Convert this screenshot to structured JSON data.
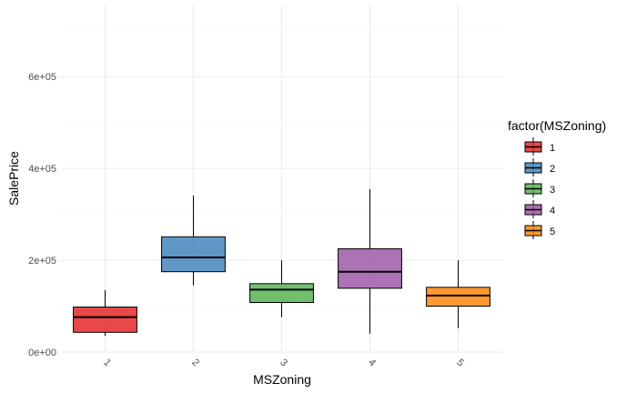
{
  "chart_data": {
    "type": "boxplot",
    "xlabel": "MSZoning",
    "ylabel": "SalePrice",
    "ylim": [
      0,
      755000
    ],
    "y_ticks": [
      {
        "value": 0,
        "label": "0e+00"
      },
      {
        "value": 200000,
        "label": "2e+05"
      },
      {
        "value": 400000,
        "label": "4e+05"
      },
      {
        "value": 600000,
        "label": "6e+05"
      }
    ],
    "y_minor_ticks": [
      100000,
      300000,
      500000,
      700000
    ],
    "categories": [
      "1",
      "2",
      "3",
      "4",
      "5"
    ],
    "grid": true,
    "legend": {
      "title": "factor(MSZoning)",
      "position": "right",
      "entries": [
        "1",
        "2",
        "3",
        "4",
        "5"
      ]
    },
    "colors": [
      "#e41a1c",
      "#377eb8",
      "#4daf4a",
      "#984ea3",
      "#ff7f00"
    ],
    "boxes": [
      {
        "category": "1",
        "whisker_low": 35000,
        "q1": 43000,
        "median": 76000,
        "q3": 98000,
        "whisker_high": 135000
      },
      {
        "category": "2",
        "whisker_low": 145000,
        "q1": 175000,
        "median": 206000,
        "q3": 251000,
        "whisker_high": 341000
      },
      {
        "category": "3",
        "whisker_low": 76000,
        "q1": 108000,
        "median": 136000,
        "q3": 149000,
        "whisker_high": 200000
      },
      {
        "category": "4",
        "whisker_low": 40000,
        "q1": 139000,
        "median": 175000,
        "q3": 225000,
        "whisker_high": 355000
      },
      {
        "category": "5",
        "whisker_low": 52000,
        "q1": 100000,
        "median": 123000,
        "q3": 141000,
        "whisker_high": 200000
      }
    ]
  }
}
